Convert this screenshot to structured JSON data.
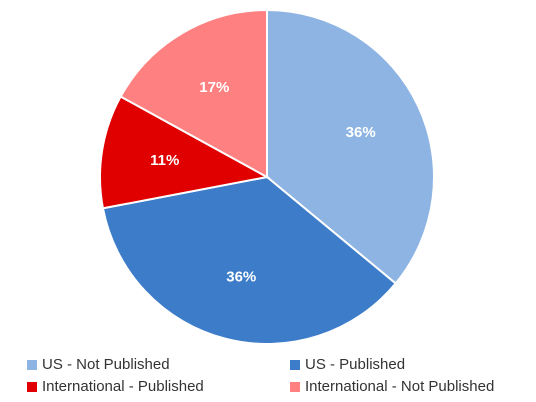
{
  "chart_data": {
    "type": "pie",
    "categories": [
      "US - Not Published",
      "US - Published",
      "International - Published",
      "International - Not Published"
    ],
    "values": [
      36,
      36,
      11,
      17
    ],
    "value_labels": [
      "36%",
      "36%",
      "11%",
      "17%"
    ],
    "colors": [
      "#8db4e2",
      "#3d7cc9",
      "#e00000",
      "#ff8080"
    ]
  }
}
